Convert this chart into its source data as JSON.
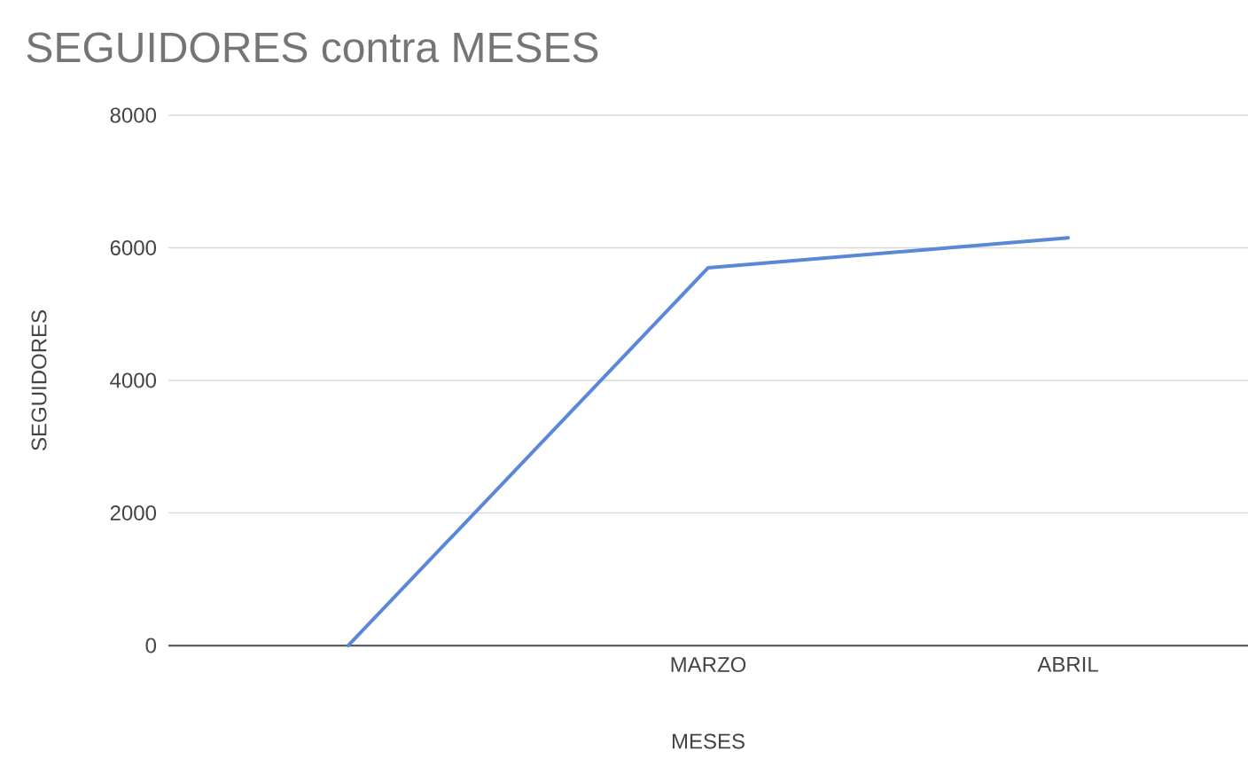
{
  "chart_data": {
    "type": "line",
    "title": "SEGUIDORES contra MESES",
    "xlabel": "MESES",
    "ylabel": "SEGUIDORES",
    "categories": [
      null,
      "MARZO",
      "ABRIL"
    ],
    "series": [
      {
        "color": "#5a87d8",
        "values": [
          0,
          5700,
          6150
        ]
      }
    ],
    "ylim": [
      0,
      8000
    ],
    "yticks": [
      0,
      2000,
      4000,
      6000,
      8000
    ],
    "grid": "y",
    "marker": "none",
    "line_style": "solid"
  }
}
